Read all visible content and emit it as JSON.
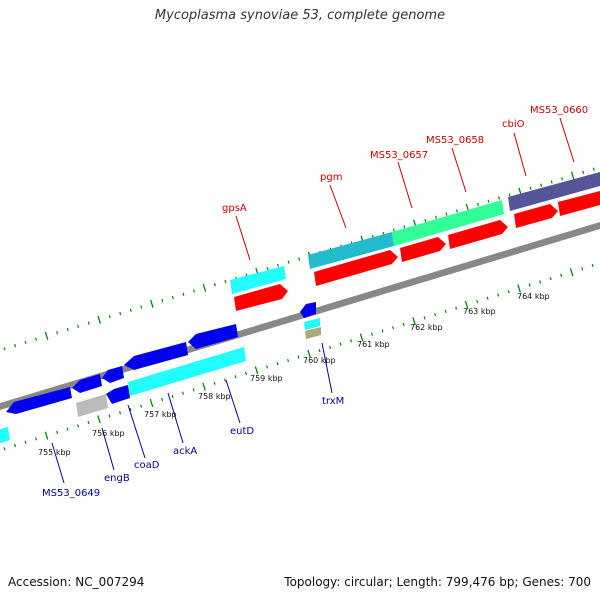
{
  "header": {
    "title": "Mycoplasma synoviae 53, complete genome"
  },
  "footer": {
    "accession": "Accession: NC_007294",
    "topology": "Topology: circular; Length: 799,476 bp; Genes: 700"
  },
  "colors": {
    "forward_label": "#cc0000",
    "reverse_label": "#000099",
    "backbone": "#888888",
    "tick": "#008800",
    "cds_forward": "#ff0000",
    "cds_reverse": "#0000ee",
    "gene_cyan": "#22ffff",
    "gene_teal": "#22bbcc",
    "gene_mint": "#33ff99",
    "gene_slate": "#555599",
    "gene_gray": "#bbbbbb",
    "gene_olive": "#aaaa77"
  },
  "gene_labels": {
    "forward": [
      "gpsA",
      "pgm",
      "MS53_0657",
      "MS53_0658",
      "cbiO",
      "MS53_0660"
    ],
    "reverse": [
      "MS53_0649",
      "engB",
      "coaD",
      "ackA",
      "eutD",
      "trxM"
    ]
  },
  "ticks": [
    "755 kbp",
    "756 kbp",
    "757 kbp",
    "758 kbp",
    "759 kbp",
    "760 kbp",
    "761 kbp",
    "762 kbp",
    "763 kbp",
    "764 kbp"
  ]
}
